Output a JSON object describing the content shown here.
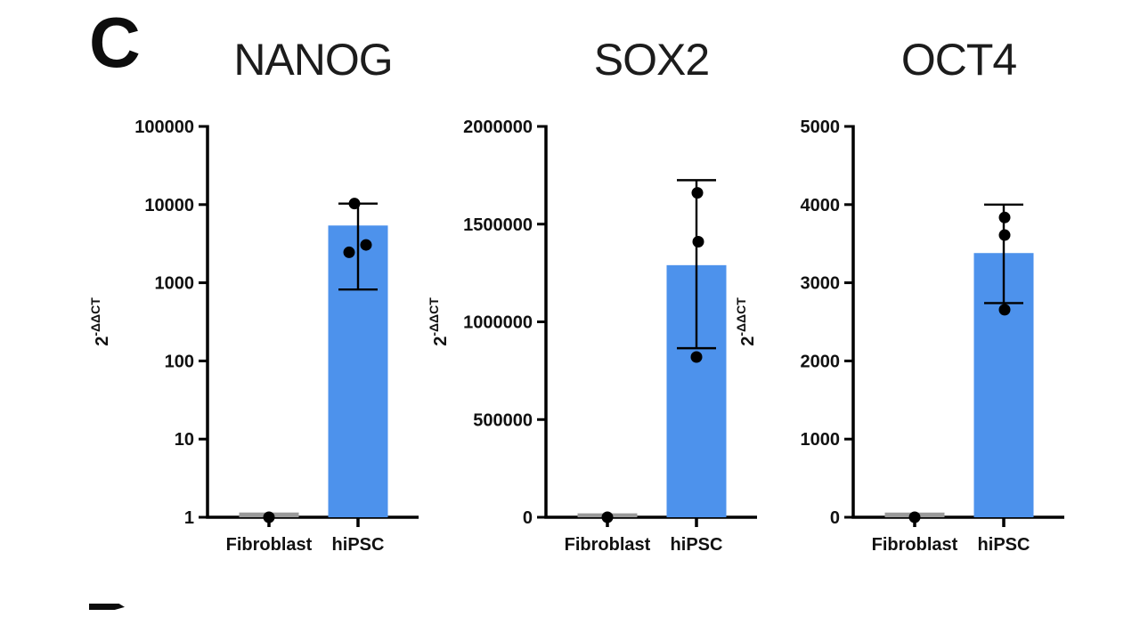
{
  "panel": {
    "label": "C",
    "partial_next_label": "D"
  },
  "chart_data": [
    {
      "id": "nanog",
      "type": "bar",
      "title": "NANOG",
      "ylabel": {
        "base": "2",
        "sup": "-ΔΔCT"
      },
      "yscale": "log",
      "ylim": [
        1,
        100000
      ],
      "yticks": [
        {
          "v": 100000,
          "label": "100000"
        },
        {
          "v": 10000,
          "label": "10000"
        },
        {
          "v": 1000,
          "label": "1000"
        },
        {
          "v": 100,
          "label": "100"
        },
        {
          "v": 10,
          "label": "10"
        },
        {
          "v": 1,
          "label": "1"
        }
      ],
      "categories": [
        "Fibroblast",
        "hiPSC"
      ],
      "bars": [
        {
          "category": "Fibroblast",
          "mean": 1.15,
          "color": "#9a9a9a",
          "error": null,
          "points": [
            {
              "v": 1.0,
              "dx": 0
            }
          ]
        },
        {
          "category": "hiPSC",
          "mean": 5400,
          "color": "#4d92ec",
          "error": {
            "low": 820,
            "high": 10300
          },
          "points": [
            {
              "v": 10300,
              "dx": -4
            },
            {
              "v": 2450,
              "dx": -10
            },
            {
              "v": 3050,
              "dx": 9
            }
          ]
        }
      ]
    },
    {
      "id": "sox2",
      "type": "bar",
      "title": "SOX2",
      "ylabel": {
        "base": "2",
        "sup": "-ΔΔCT"
      },
      "yscale": "linear",
      "ylim": [
        0,
        2000000
      ],
      "yticks": [
        {
          "v": 2000000,
          "label": "2000000"
        },
        {
          "v": 1500000,
          "label": "1500000"
        },
        {
          "v": 1000000,
          "label": "1000000"
        },
        {
          "v": 500000,
          "label": "500000"
        },
        {
          "v": 0,
          "label": "0"
        }
      ],
      "categories": [
        "Fibroblast",
        "hiPSC"
      ],
      "bars": [
        {
          "category": "Fibroblast",
          "mean": 20000,
          "color": "#9a9a9a",
          "error": null,
          "points": [
            {
              "v": 0,
              "dx": 0
            }
          ]
        },
        {
          "category": "hiPSC",
          "mean": 1290000,
          "color": "#4d92ec",
          "error": {
            "low": 865000,
            "high": 1725000
          },
          "points": [
            {
              "v": 1660000,
              "dx": 1
            },
            {
              "v": 1410000,
              "dx": 2
            },
            {
              "v": 820000,
              "dx": 0
            }
          ]
        }
      ]
    },
    {
      "id": "oct4",
      "type": "bar",
      "title": "OCT4",
      "ylabel": {
        "base": "2",
        "sup": "-ΔΔCT"
      },
      "yscale": "linear",
      "ylim": [
        0,
        5000
      ],
      "yticks": [
        {
          "v": 5000,
          "label": "5000"
        },
        {
          "v": 4000,
          "label": "4000"
        },
        {
          "v": 3000,
          "label": "3000"
        },
        {
          "v": 2000,
          "label": "2000"
        },
        {
          "v": 1000,
          "label": "1000"
        },
        {
          "v": 0,
          "label": "0"
        }
      ],
      "categories": [
        "Fibroblast",
        "hiPSC"
      ],
      "bars": [
        {
          "category": "Fibroblast",
          "mean": 60,
          "color": "#9a9a9a",
          "error": null,
          "points": [
            {
              "v": 0,
              "dx": 0
            }
          ]
        },
        {
          "category": "hiPSC",
          "mean": 3380,
          "color": "#4d92ec",
          "error": {
            "low": 2740,
            "high": 4000
          },
          "points": [
            {
              "v": 3835,
              "dx": 1
            },
            {
              "v": 3610,
              "dx": 1
            },
            {
              "v": 2655,
              "dx": 1
            }
          ]
        }
      ]
    }
  ]
}
